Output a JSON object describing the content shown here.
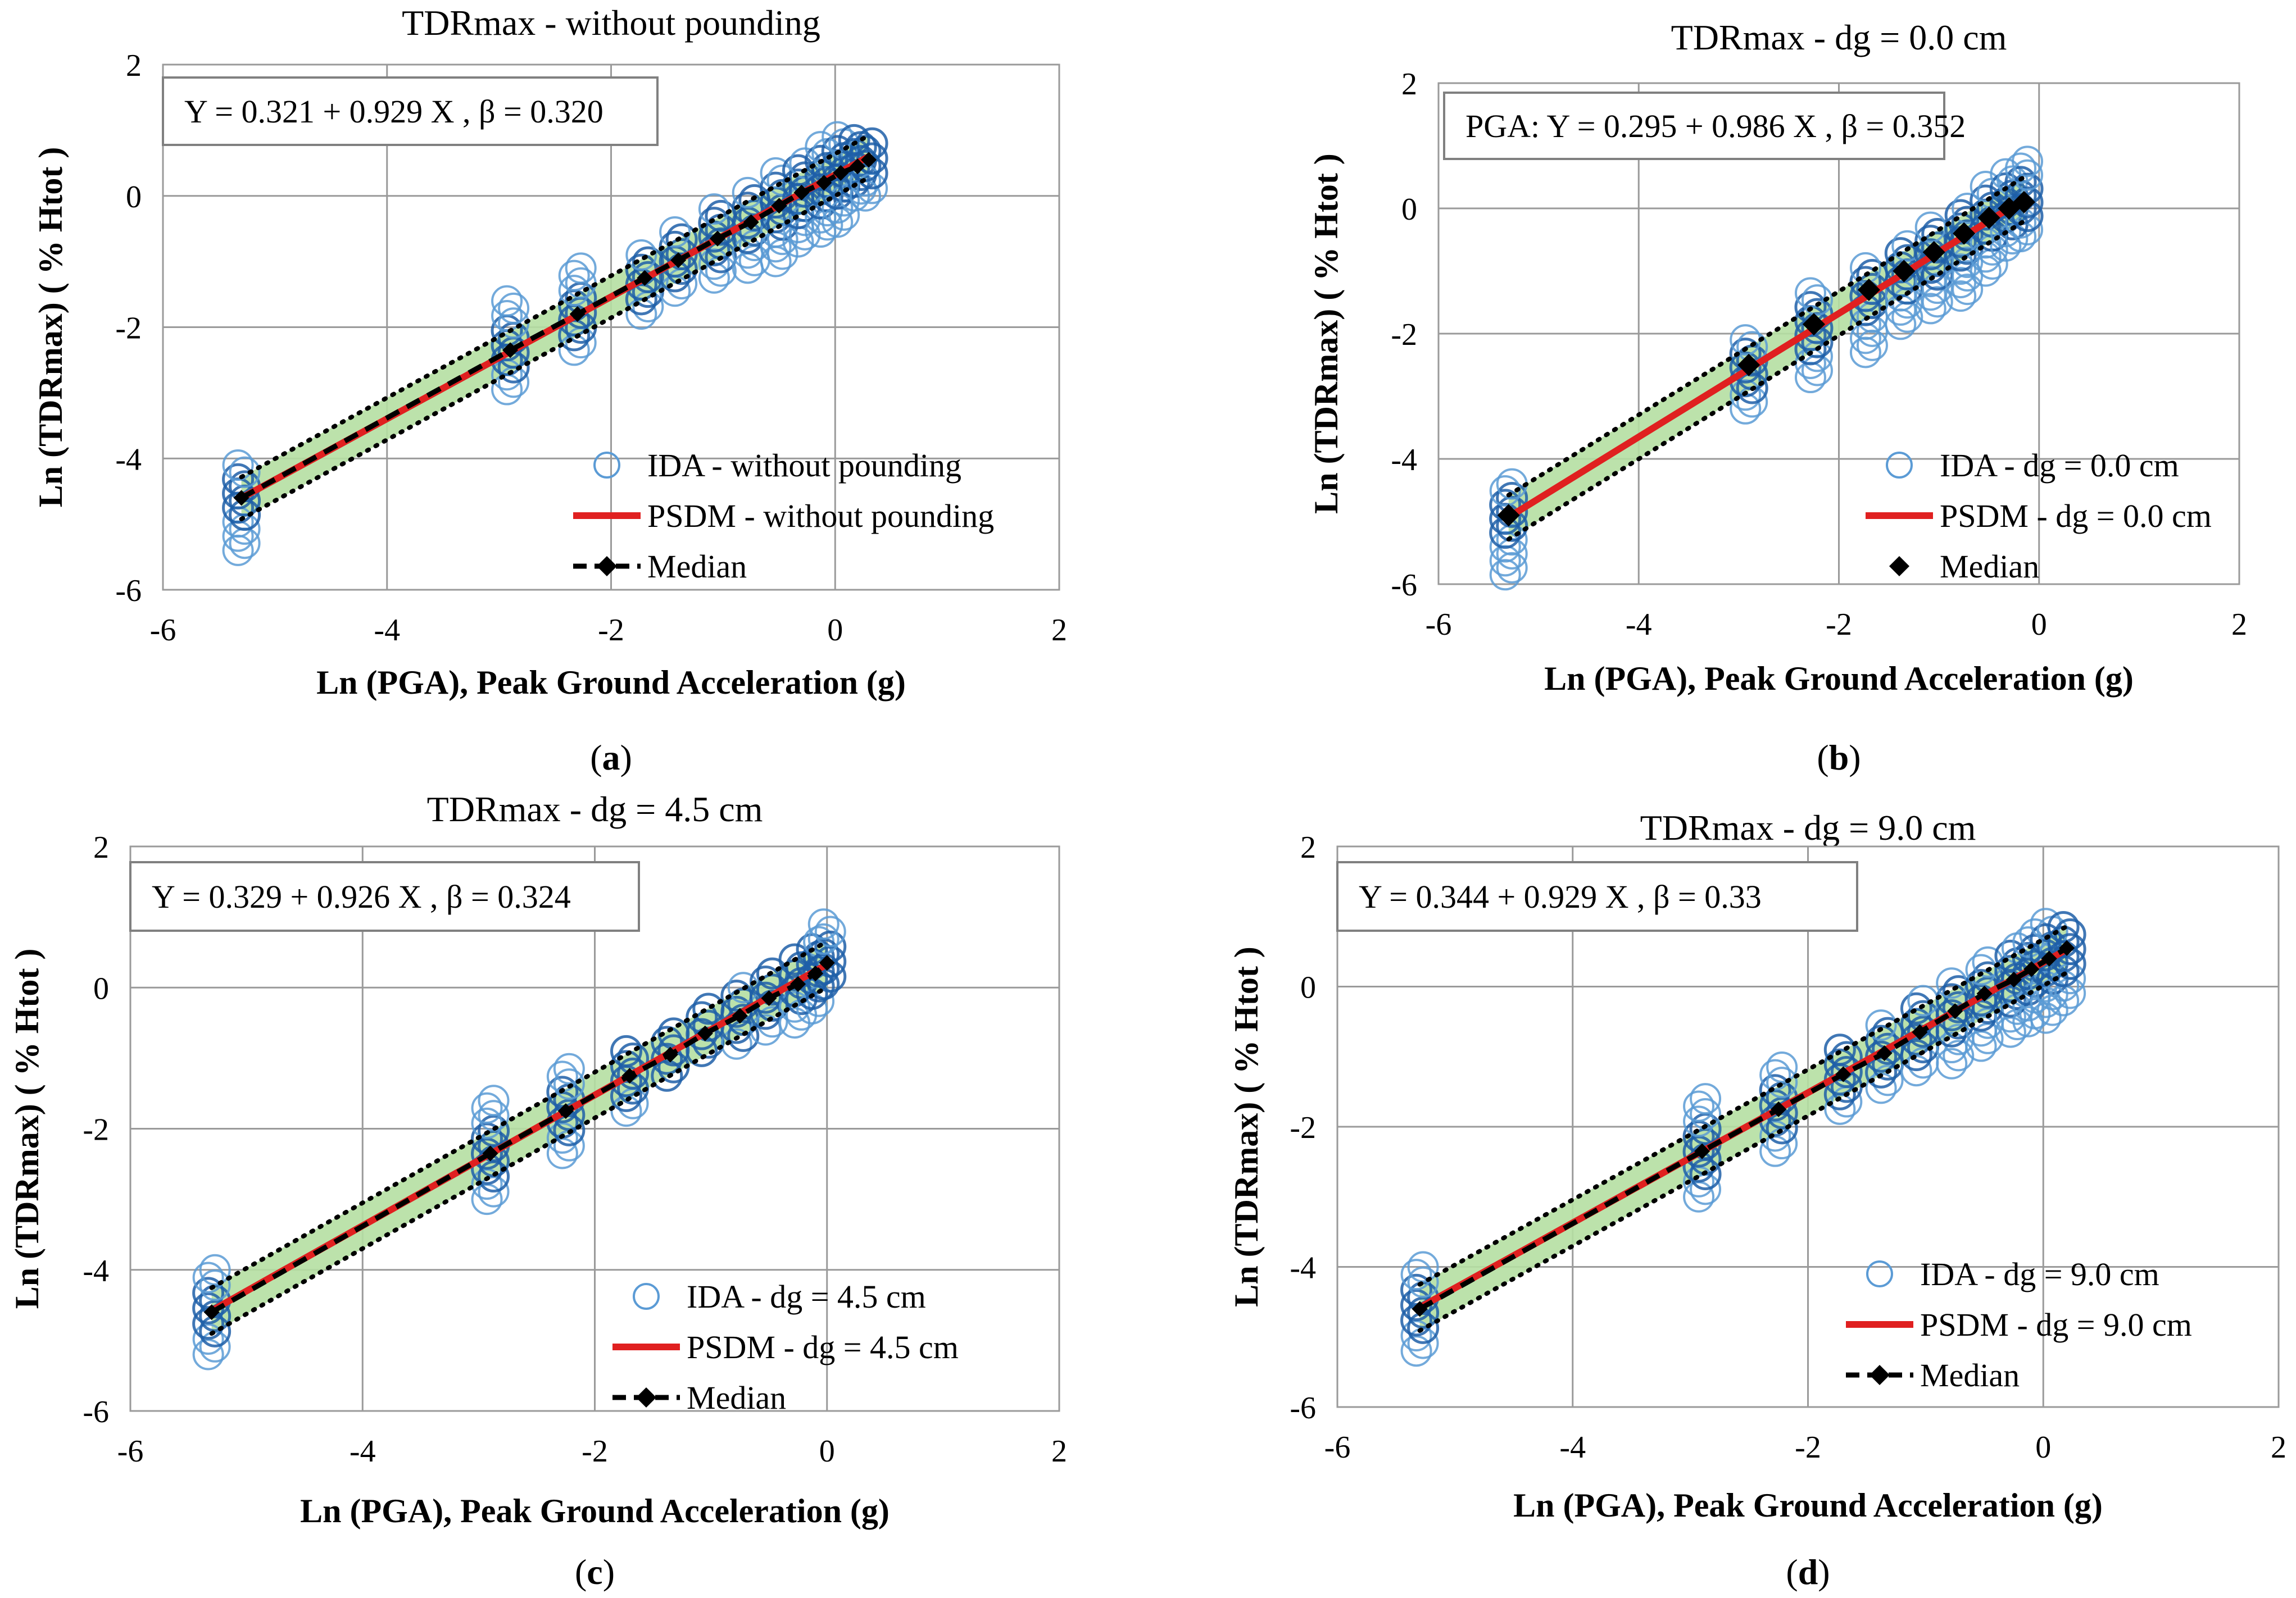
{
  "colors": {
    "ida_marker": "#5b9bd5",
    "ida_marker_dense": "#1f5fa8",
    "psdm_line": "#e02020",
    "median": "#000000",
    "band_fill": "#b5dfa2",
    "band_edge": "#000000",
    "grid": "#9a9a9a",
    "frame": "#9a9a9a"
  },
  "chart_data": [
    {
      "panel": "a",
      "type": "scatter",
      "title": "TDRmax -  without pounding",
      "xlabel": "Ln (PGA), Peak Ground Acceleration (g)",
      "ylabel": "Ln (TDRmax) ( % Htot )",
      "xlim": [
        -6,
        2
      ],
      "ylim": [
        -6,
        2
      ],
      "x_ticks": [
        "-6",
        "-4",
        "-2",
        "0",
        "2"
      ],
      "y_ticks": [
        "2",
        "0",
        "-2",
        "-4",
        "-6"
      ],
      "grid": true,
      "equation": "Y = 0.321 + 0.929 X , β = 0.320",
      "fit": {
        "intercept": 0.321,
        "slope": 0.929,
        "beta": 0.32,
        "x_range": [
          -5.3,
          0.3
        ]
      },
      "median_points": [
        [
          -5.3,
          -4.6
        ],
        [
          -2.9,
          -2.35
        ],
        [
          -2.3,
          -1.8
        ],
        [
          -1.7,
          -1.25
        ],
        [
          -1.4,
          -0.98
        ],
        [
          -1.05,
          -0.65
        ],
        [
          -0.75,
          -0.4
        ],
        [
          -0.5,
          -0.15
        ],
        [
          -0.3,
          0.05
        ],
        [
          -0.1,
          0.2
        ],
        [
          0.05,
          0.35
        ],
        [
          0.2,
          0.45
        ],
        [
          0.3,
          0.55
        ]
      ],
      "median_marker": false,
      "ida_columns": [
        {
          "x": -5.3,
          "ymin": -5.4,
          "ymax": -4.1
        },
        {
          "x": -2.9,
          "ymin": -2.95,
          "ymax": -1.6
        },
        {
          "x": -2.3,
          "ymin": -2.35,
          "ymax": -1.1
        },
        {
          "x": -1.7,
          "ymin": -1.8,
          "ymax": -0.9
        },
        {
          "x": -1.4,
          "ymin": -1.45,
          "ymax": -0.55
        },
        {
          "x": -1.05,
          "ymin": -1.25,
          "ymax": -0.2
        },
        {
          "x": -0.75,
          "ymin": -1.1,
          "ymax": 0.05
        },
        {
          "x": -0.5,
          "ymin": -1.0,
          "ymax": 0.35
        },
        {
          "x": -0.3,
          "ymin": -0.7,
          "ymax": 0.5
        },
        {
          "x": -0.1,
          "ymin": -0.55,
          "ymax": 0.75
        },
        {
          "x": 0.05,
          "ymin": -0.4,
          "ymax": 0.9
        },
        {
          "x": 0.2,
          "ymin": 0.0,
          "ymax": 0.85
        },
        {
          "x": 0.3,
          "ymin": 0.0,
          "ymax": 0.8
        }
      ],
      "legend": [
        {
          "label": "IDA - without pounding",
          "kind": "circle"
        },
        {
          "label": "PSDM - without pounding",
          "kind": "line"
        },
        {
          "label": "Median",
          "kind": "dash-diamond"
        }
      ],
      "caption_letter": "a"
    },
    {
      "panel": "b",
      "type": "scatter",
      "title": "TDRmax - dg = 0.0 cm",
      "xlabel": "Ln (PGA), Peak Ground Acceleration (g)",
      "ylabel": "Ln (TDRmax) ( % Htot )",
      "xlim": [
        -6,
        2
      ],
      "ylim": [
        -6,
        2
      ],
      "x_ticks": [
        "-6",
        "-4",
        "-2",
        "0",
        "2"
      ],
      "y_ticks": [
        "2",
        "0",
        "-2",
        "-4",
        "-6"
      ],
      "grid": true,
      "equation": "PGA: Y = 0.295 + 0.986 X , β = 0.352",
      "fit": {
        "intercept": 0.295,
        "slope": 0.986,
        "beta": 0.352,
        "x_range": [
          -5.3,
          -0.15
        ]
      },
      "median_points": [
        [
          -5.3,
          -4.9
        ],
        [
          -2.9,
          -2.5
        ],
        [
          -2.25,
          -1.85
        ],
        [
          -1.7,
          -1.3
        ],
        [
          -1.35,
          -1.0
        ],
        [
          -1.05,
          -0.7
        ],
        [
          -0.75,
          -0.4
        ],
        [
          -0.5,
          -0.15
        ],
        [
          -0.3,
          0.0
        ],
        [
          -0.15,
          0.1
        ]
      ],
      "median_marker": true,
      "ida_columns": [
        {
          "x": -5.3,
          "ymin": -5.85,
          "ymax": -4.4
        },
        {
          "x": -2.9,
          "ymin": -3.2,
          "ymax": -2.1
        },
        {
          "x": -2.25,
          "ymin": -2.7,
          "ymax": -1.35
        },
        {
          "x": -1.7,
          "ymin": -2.3,
          "ymax": -0.95
        },
        {
          "x": -1.35,
          "ymin": -1.85,
          "ymax": -0.6
        },
        {
          "x": -1.05,
          "ymin": -1.6,
          "ymax": -0.3
        },
        {
          "x": -0.75,
          "ymin": -1.4,
          "ymax": 0.0
        },
        {
          "x": -0.5,
          "ymin": -1.0,
          "ymax": 0.35
        },
        {
          "x": -0.3,
          "ymin": -0.6,
          "ymax": 0.55
        },
        {
          "x": -0.15,
          "ymin": -0.45,
          "ymax": 0.75
        }
      ],
      "legend": [
        {
          "label": "IDA - dg = 0.0 cm",
          "kind": "circle"
        },
        {
          "label": "PSDM - dg = 0.0 cm",
          "kind": "line"
        },
        {
          "label": "Median",
          "kind": "diamond"
        }
      ],
      "caption_letter": "b"
    },
    {
      "panel": "c",
      "type": "scatter",
      "title": "TDRmax - dg = 4.5 cm",
      "xlabel": "Ln (PGA), Peak Ground Acceleration (g)",
      "ylabel": "Ln (TDRmax) ( % Htot )",
      "xlim": [
        -6,
        2
      ],
      "ylim": [
        -6,
        2
      ],
      "x_ticks": [
        "-6",
        "-4",
        "-2",
        "0",
        "2"
      ],
      "y_ticks": [
        "2",
        "0",
        "-2",
        "-4",
        "-6"
      ],
      "grid": true,
      "equation": "Y = 0.329 + 0.926 X , β = 0.324",
      "fit": {
        "intercept": 0.329,
        "slope": 0.926,
        "beta": 0.324,
        "x_range": [
          -5.3,
          0.0
        ]
      },
      "median_points": [
        [
          -5.3,
          -4.6
        ],
        [
          -2.9,
          -2.35
        ],
        [
          -2.25,
          -1.75
        ],
        [
          -1.7,
          -1.25
        ],
        [
          -1.35,
          -0.95
        ],
        [
          -1.05,
          -0.65
        ],
        [
          -0.75,
          -0.4
        ],
        [
          -0.5,
          -0.15
        ],
        [
          -0.25,
          0.05
        ],
        [
          -0.1,
          0.2
        ],
        [
          0.0,
          0.35
        ]
      ],
      "median_marker": false,
      "ida_columns": [
        {
          "x": -5.3,
          "ymin": -5.2,
          "ymax": -4.0
        },
        {
          "x": -2.9,
          "ymin": -3.0,
          "ymax": -1.6
        },
        {
          "x": -2.25,
          "ymin": -2.35,
          "ymax": -1.15
        },
        {
          "x": -1.7,
          "ymin": -1.75,
          "ymax": -0.9
        },
        {
          "x": -1.35,
          "ymin": -1.25,
          "ymax": -0.65
        },
        {
          "x": -1.05,
          "ymin": -0.9,
          "ymax": -0.3
        },
        {
          "x": -0.75,
          "ymin": -0.8,
          "ymax": 0.0
        },
        {
          "x": -0.5,
          "ymin": -0.6,
          "ymax": 0.2
        },
        {
          "x": -0.25,
          "ymin": -0.5,
          "ymax": 0.4
        },
        {
          "x": -0.1,
          "ymin": -0.3,
          "ymax": 0.65
        },
        {
          "x": 0.0,
          "ymin": 0.05,
          "ymax": 0.9
        }
      ],
      "legend": [
        {
          "label": "IDA - dg = 4.5 cm",
          "kind": "circle"
        },
        {
          "label": "PSDM - dg = 4.5 cm",
          "kind": "line"
        },
        {
          "label": "Median",
          "kind": "dash-diamond"
        }
      ],
      "caption_letter": "c"
    },
    {
      "panel": "d",
      "type": "scatter",
      "title": "TDRmax - dg = 9.0 cm",
      "xlabel": "Ln (PGA), Peak Ground Acceleration (g)",
      "ylabel": "Ln (TDRmax) ( % Htot )",
      "xlim": [
        -6,
        2
      ],
      "ylim": [
        -6,
        2
      ],
      "x_ticks": [
        "-6",
        "-4",
        "-2",
        "0",
        "2"
      ],
      "y_ticks": [
        "2",
        "0",
        "-2",
        "-4",
        "-6"
      ],
      "grid": true,
      "equation": "Y = 0.344 + 0.929 X , β = 0.33",
      "fit": {
        "intercept": 0.344,
        "slope": 0.929,
        "beta": 0.33,
        "x_range": [
          -5.3,
          0.2
        ]
      },
      "median_points": [
        [
          -5.3,
          -4.6
        ],
        [
          -2.9,
          -2.35
        ],
        [
          -2.25,
          -1.75
        ],
        [
          -1.7,
          -1.25
        ],
        [
          -1.35,
          -0.95
        ],
        [
          -1.05,
          -0.65
        ],
        [
          -0.75,
          -0.35
        ],
        [
          -0.5,
          -0.1
        ],
        [
          -0.25,
          0.1
        ],
        [
          -0.1,
          0.25
        ],
        [
          0.05,
          0.4
        ],
        [
          0.2,
          0.55
        ]
      ],
      "median_marker": false,
      "ida_columns": [
        {
          "x": -5.3,
          "ymin": -5.2,
          "ymax": -4.0
        },
        {
          "x": -2.9,
          "ymin": -3.0,
          "ymax": -1.6
        },
        {
          "x": -2.25,
          "ymin": -2.35,
          "ymax": -1.15
        },
        {
          "x": -1.7,
          "ymin": -1.75,
          "ymax": -0.9
        },
        {
          "x": -1.35,
          "ymin": -1.45,
          "ymax": -0.55
        },
        {
          "x": -1.05,
          "ymin": -1.2,
          "ymax": -0.2
        },
        {
          "x": -0.75,
          "ymin": -1.1,
          "ymax": 0.05
        },
        {
          "x": -0.5,
          "ymin": -0.85,
          "ymax": 0.35
        },
        {
          "x": -0.25,
          "ymin": -0.65,
          "ymax": 0.55
        },
        {
          "x": -0.1,
          "ymin": -0.5,
          "ymax": 0.75
        },
        {
          "x": 0.05,
          "ymin": -0.45,
          "ymax": 0.9
        },
        {
          "x": 0.2,
          "ymin": -0.2,
          "ymax": 0.85
        }
      ],
      "legend": [
        {
          "label": "IDA - dg = 9.0 cm",
          "kind": "circle"
        },
        {
          "label": "PSDM - dg = 9.0 cm",
          "kind": "line"
        },
        {
          "label": "Median",
          "kind": "dash-diamond"
        }
      ],
      "caption_letter": "d"
    }
  ]
}
